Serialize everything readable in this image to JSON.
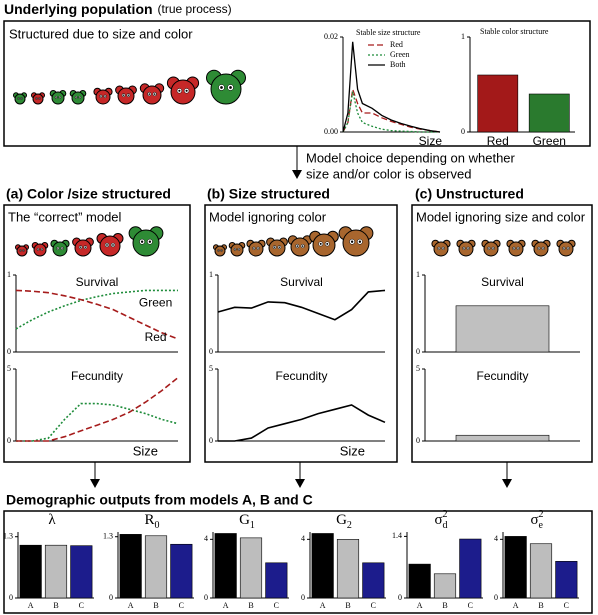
{
  "top": {
    "title": "Underlying population",
    "note": "(true process)",
    "subtitle": "Structured due to size and color",
    "size_chart": {
      "type": "line",
      "title": "Stable size structure",
      "xlabel": "Size",
      "legend": true,
      "x": [
        0,
        0.05,
        0.1,
        0.15,
        0.2,
        0.3,
        0.4,
        0.5,
        0.6,
        0.7,
        0.8,
        0.9,
        1
      ],
      "xlim": [
        0,
        1
      ],
      "ylim": [
        0,
        0.02
      ],
      "yticks": [
        {
          "value": 0,
          "label": "0.00"
        },
        {
          "value": 0.02,
          "label": "0.02"
        }
      ],
      "series": [
        {
          "name": "Red",
          "color": "#a61c1c",
          "dash": "dashed",
          "values": [
            0,
            0.002,
            0.009,
            0.006,
            0.004,
            0.004,
            0.003,
            0.0022,
            0.0016,
            0.001,
            0.0006,
            0.0003,
            0
          ]
        },
        {
          "name": "Green",
          "color": "#1e8c3a",
          "dash": "dotted",
          "values": [
            0,
            0.002,
            0.0085,
            0.004,
            0.002,
            0.0012,
            0.0006,
            0.0003,
            0.0002,
            0.0001,
            0,
            0,
            0
          ]
        },
        {
          "name": "Both",
          "color": "#000000",
          "dash": "solid",
          "values": [
            0,
            0.004,
            0.019,
            0.009,
            0.006,
            0.005,
            0.0035,
            0.0025,
            0.0018,
            0.0012,
            0.0007,
            0.0003,
            0
          ]
        }
      ]
    },
    "color_chart": {
      "type": "bar",
      "title": "Stable color structure",
      "categories": [
        "Red",
        "Green"
      ],
      "values": [
        0.6,
        0.4
      ],
      "colors": [
        "#a31919",
        "#2a7a2e"
      ],
      "ylim": [
        0,
        1
      ],
      "yticks": [
        0,
        1
      ]
    }
  },
  "arrow_text": [
    "Model choice depending on whether",
    "size and/or color is observed"
  ],
  "panels": [
    {
      "label": "(a) Color /size structured",
      "subtitle": "The “correct” model",
      "charts": [
        {
          "type": "line",
          "title": "Survival",
          "x": [
            0,
            0.1,
            0.2,
            0.3,
            0.4,
            0.5,
            0.6,
            0.7,
            0.8,
            0.9,
            1
          ],
          "xlim": [
            0,
            1
          ],
          "ylim": [
            0,
            1
          ],
          "yticks": [
            0,
            1
          ],
          "series": [
            {
              "name": "Green",
              "color": "#1e8c3a",
              "dash": "dotted",
              "values": [
                0.3,
                0.42,
                0.52,
                0.6,
                0.67,
                0.72,
                0.76,
                0.78,
                0.8,
                0.8,
                0.8
              ]
            },
            {
              "name": "Red",
              "color": "#a61c1c",
              "dash": "dashed",
              "values": [
                0.8,
                0.79,
                0.77,
                0.73,
                0.68,
                0.62,
                0.55,
                0.45,
                0.35,
                0.25,
                0.17
              ]
            }
          ]
        },
        {
          "type": "line",
          "title": "Fecundity",
          "xlabel": "Size",
          "x": [
            0,
            0.1,
            0.2,
            0.3,
            0.4,
            0.5,
            0.6,
            0.7,
            0.8,
            0.9,
            1
          ],
          "xlim": [
            0,
            1
          ],
          "ylim": [
            0,
            5
          ],
          "yticks": [
            0,
            5
          ],
          "series": [
            {
              "color": "#1e8c3a",
              "dash": "dotted",
              "values": [
                0,
                0,
                0.2,
                1.5,
                2.6,
                2.6,
                2.5,
                2.2,
                1.9,
                1.5,
                1.2
              ]
            },
            {
              "color": "#a61c1c",
              "dash": "dashed",
              "values": [
                0,
                0,
                0,
                0.3,
                0.7,
                1.1,
                1.5,
                2.0,
                2.7,
                3.5,
                4.4
              ]
            }
          ]
        }
      ]
    },
    {
      "label": "(b) Size structured",
      "subtitle": "Model ignoring color",
      "charts": [
        {
          "type": "line",
          "title": "Survival",
          "x": [
            0,
            0.1,
            0.2,
            0.3,
            0.4,
            0.5,
            0.6,
            0.7,
            0.8,
            0.9,
            1
          ],
          "xlim": [
            0,
            1
          ],
          "ylim": [
            0,
            1
          ],
          "yticks": [
            0,
            1
          ],
          "series": [
            {
              "color": "#000000",
              "dash": "solid",
              "values": [
                0.52,
                0.58,
                0.57,
                0.65,
                0.64,
                0.58,
                0.5,
                0.42,
                0.55,
                0.78,
                0.8
              ]
            }
          ]
        },
        {
          "type": "line",
          "title": "Fecundity",
          "xlabel": "Size",
          "x": [
            0,
            0.1,
            0.2,
            0.3,
            0.4,
            0.5,
            0.6,
            0.7,
            0.8,
            0.9,
            1
          ],
          "xlim": [
            0,
            1
          ],
          "ylim": [
            0,
            5
          ],
          "yticks": [
            0,
            5
          ],
          "series": [
            {
              "color": "#000000",
              "dash": "solid",
              "values": [
                0,
                0,
                0.2,
                0.9,
                1.2,
                1.5,
                1.9,
                2.2,
                2.5,
                1.8,
                1.3
              ]
            }
          ]
        }
      ]
    },
    {
      "label": "(c) Unstructured",
      "subtitle": "Model ignoring size and color",
      "charts": [
        {
          "type": "bar",
          "title": "Survival",
          "values": [
            0.6
          ],
          "colors": [
            "#c0c0c0"
          ],
          "ylim": [
            0,
            1
          ],
          "yticks": [
            0,
            1
          ]
        },
        {
          "type": "bar",
          "title": "Fecundity",
          "values": [
            0.4
          ],
          "colors": [
            "#c0c0c0"
          ],
          "ylim": [
            0,
            5
          ],
          "yticks": [
            0,
            5
          ]
        }
      ]
    }
  ],
  "outputs": {
    "title": "Demographic outputs from models A, B and C",
    "charts": [
      {
        "type": "bar",
        "title": "λ",
        "categories": [
          "A",
          "B",
          "C"
        ],
        "values": [
          1.12,
          1.12,
          1.11
        ],
        "colors": [
          "#000000",
          "#bdbdbd",
          "#1c1c8c"
        ],
        "ylim": [
          0,
          1.4
        ],
        "yticks": [
          0,
          1.3
        ]
      },
      {
        "type": "bar",
        "title": "R",
        "title_sub": "0",
        "categories": [
          "A",
          "B",
          "C"
        ],
        "values": [
          1.35,
          1.32,
          1.14
        ],
        "colors": [
          "#000000",
          "#bdbdbd",
          "#1c1c8c"
        ],
        "ylim": [
          0,
          1.4
        ],
        "yticks": [
          0,
          1.3
        ]
      },
      {
        "type": "bar",
        "title": "G",
        "title_sub": "1",
        "categories": [
          "A",
          "B",
          "C"
        ],
        "values": [
          4.4,
          4.1,
          2.4
        ],
        "colors": [
          "#000000",
          "#bdbdbd",
          "#1c1c8c"
        ],
        "ylim": [
          0,
          4.5
        ],
        "yticks": [
          0,
          4
        ]
      },
      {
        "type": "bar",
        "title": "G",
        "title_sub": "2",
        "categories": [
          "A",
          "B",
          "C"
        ],
        "values": [
          4.4,
          4.0,
          2.4
        ],
        "colors": [
          "#000000",
          "#bdbdbd",
          "#1c1c8c"
        ],
        "ylim": [
          0,
          4.5
        ],
        "yticks": [
          0,
          4
        ]
      },
      {
        "type": "bar",
        "title": "σ",
        "title_sup": "2",
        "title_sub": "d",
        "categories": [
          "A",
          "B",
          "C"
        ],
        "values": [
          0.77,
          0.55,
          1.34
        ],
        "colors": [
          "#000000",
          "#bdbdbd",
          "#1c1c8c"
        ],
        "ylim": [
          0,
          1.5
        ],
        "yticks": [
          0,
          1.4
        ]
      },
      {
        "type": "bar",
        "title": "σ",
        "title_sup": "2",
        "title_sub": "e",
        "categories": [
          "A",
          "B",
          "C"
        ],
        "values": [
          4.2,
          3.7,
          2.5
        ],
        "colors": [
          "#000000",
          "#bdbdbd",
          "#1c1c8c"
        ],
        "ylim": [
          0,
          4.5
        ],
        "yticks": [
          0,
          4
        ]
      }
    ]
  }
}
